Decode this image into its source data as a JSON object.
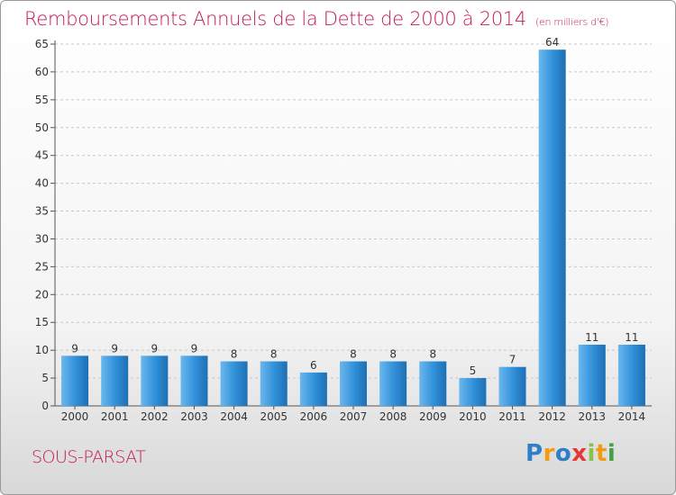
{
  "chart_data": {
    "type": "bar",
    "title": "Remboursements Annuels de la Dette de 2000 à 2014",
    "subtitle": "(en milliers d'€)",
    "xlabel": "",
    "ylabel": "",
    "categories": [
      "2000",
      "2001",
      "2002",
      "2003",
      "2004",
      "2005",
      "2006",
      "2007",
      "2008",
      "2009",
      "2010",
      "2011",
      "2012",
      "2013",
      "2014"
    ],
    "values": [
      9,
      9,
      9,
      9,
      8,
      8,
      6,
      8,
      8,
      8,
      5,
      7,
      64,
      11,
      11
    ],
    "ylim": [
      0,
      65
    ],
    "yticks": [
      0,
      5,
      10,
      15,
      20,
      25,
      30,
      35,
      40,
      45,
      50,
      55,
      60,
      65
    ],
    "grid": "horizontal dashed",
    "bar_color": "#2f8fd8",
    "bar_highlight": "#6ab7ee"
  },
  "commune": "SOUS-PARSAT",
  "logo": {
    "letters": [
      {
        "ch": "P",
        "color": "#2e7fc7"
      },
      {
        "ch": "r",
        "color": "#f39c12"
      },
      {
        "ch": "o",
        "color": "#2e7fc7"
      },
      {
        "ch": "x",
        "color": "#e53935"
      },
      {
        "ch": "i",
        "color": "#8bc34a"
      },
      {
        "ch": "t",
        "color": "#f39c12"
      },
      {
        "ch": "i",
        "color": "#43a047"
      }
    ]
  }
}
